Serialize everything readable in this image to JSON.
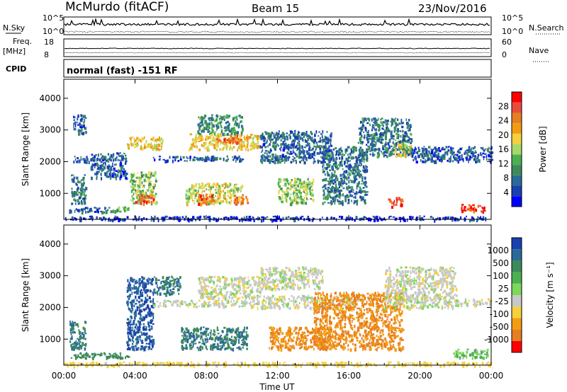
{
  "header": {
    "station": "McMurdo (fitACF)",
    "beam": "Beam 15",
    "date": "23/Nov/2016"
  },
  "summary_panels": {
    "nsky_label": "N.Sky",
    "nsky_ticks": [
      "10^5",
      "10^0"
    ],
    "nsearch_label": "N.Search",
    "nsearch_ticks": [
      "10^5",
      "10^0"
    ],
    "freq_label": "Freq.",
    "freq_unit": "[MHz]",
    "freq_ticks": [
      "18",
      "8"
    ],
    "nave_label": "Nave",
    "nave_ticks": [
      "60",
      "0"
    ],
    "cpid_label": "CPID",
    "cpid_value": "normal (fast) -151 RF"
  },
  "chart_data": [
    {
      "type": "heatmap",
      "panel": "power",
      "ylabel": "Slant Range [km]",
      "ylim": [
        180,
        4600
      ],
      "yticks": [
        "1000",
        "2000",
        "3000",
        "4000"
      ],
      "xlim": [
        0,
        24
      ],
      "colorbar": {
        "label": "Power [dB]",
        "ticks": [
          "28",
          "24",
          "20",
          "16",
          "12",
          "8",
          "4"
        ],
        "colors": [
          "#0000ff",
          "#1a3fb0",
          "#2a6a9a",
          "#3d8a5a",
          "#4caf50",
          "#a6d96a",
          "#f4d03f",
          "#f39c12",
          "#e67e22",
          "#e74c3c",
          "#ff0000"
        ]
      },
      "regions": [
        {
          "t0": 0.3,
          "t1": 2.5,
          "r0": 430,
          "r1": 600,
          "v": 6
        },
        {
          "t0": 0.4,
          "t1": 1.2,
          "r0": 700,
          "r1": 1600,
          "v": 8
        },
        {
          "t0": 0.5,
          "t1": 1.5,
          "r0": 2000,
          "r1": 2200,
          "v": 7
        },
        {
          "t0": 0.5,
          "t1": 1.2,
          "r0": 2900,
          "r1": 3500,
          "v": 6
        },
        {
          "t0": 1.5,
          "t1": 3.5,
          "r0": 1500,
          "r1": 2300,
          "v": 6
        },
        {
          "t0": 2.5,
          "t1": 3.7,
          "r0": 450,
          "r1": 600,
          "v": 12
        },
        {
          "t0": 3.5,
          "t1": 5.5,
          "r0": 2400,
          "r1": 2800,
          "v": 18
        },
        {
          "t0": 3.7,
          "t1": 5.2,
          "r0": 700,
          "r1": 1700,
          "v": 14
        },
        {
          "t0": 4.0,
          "t1": 5.0,
          "r0": 700,
          "r1": 1000,
          "v": 24
        },
        {
          "t0": 5.0,
          "t1": 10.0,
          "r0": 2050,
          "r1": 2200,
          "v": 6
        },
        {
          "t0": 6.8,
          "t1": 10.0,
          "r0": 700,
          "r1": 1350,
          "v": 16
        },
        {
          "t0": 7.5,
          "t1": 8.5,
          "r0": 700,
          "r1": 1000,
          "v": 24
        },
        {
          "t0": 9.5,
          "t1": 10.3,
          "r0": 700,
          "r1": 1000,
          "v": 22
        },
        {
          "t0": 7.0,
          "t1": 11.0,
          "r0": 2400,
          "r1": 2900,
          "v": 18
        },
        {
          "t0": 8.5,
          "t1": 10.0,
          "r0": 2600,
          "r1": 2850,
          "v": 24
        },
        {
          "t0": 7.5,
          "t1": 10.0,
          "r0": 2900,
          "r1": 3500,
          "v": 10
        },
        {
          "t0": 11.0,
          "t1": 15.0,
          "r0": 2000,
          "r1": 3000,
          "v": 7
        },
        {
          "t0": 12.0,
          "t1": 14.0,
          "r0": 700,
          "r1": 1500,
          "v": 14
        },
        {
          "t0": 14.5,
          "t1": 17.0,
          "r0": 700,
          "r1": 2500,
          "v": 8
        },
        {
          "t0": 16.5,
          "t1": 19.5,
          "r0": 2200,
          "r1": 3400,
          "v": 8
        },
        {
          "t0": 18.2,
          "t1": 19.0,
          "r0": 600,
          "r1": 900,
          "v": 26
        },
        {
          "t0": 18.5,
          "t1": 19.5,
          "r0": 2200,
          "r1": 2600,
          "v": 16
        },
        {
          "t0": 19.5,
          "t1": 24.0,
          "r0": 2000,
          "r1": 2500,
          "v": 6
        },
        {
          "t0": 22.3,
          "t1": 23.6,
          "r0": 450,
          "r1": 700,
          "v": 26
        },
        {
          "t0": 0.0,
          "t1": 24.0,
          "r0": 180,
          "r1": 300,
          "v": 4
        }
      ]
    },
    {
      "type": "heatmap",
      "panel": "velocity",
      "ylabel": "Slant Range [km]",
      "xlabel": "Time UT",
      "ylim": [
        180,
        4600
      ],
      "yticks": [
        "1000",
        "2000",
        "3000",
        "4000"
      ],
      "xlim": [
        0,
        24
      ],
      "xticks": [
        "00:00",
        "04:00",
        "08:00",
        "12:00",
        "16:00",
        "20:00",
        "00:00"
      ],
      "colorbar": {
        "label": "Velocity [m s⁻¹]",
        "ticks": [
          "1000",
          "500",
          "100",
          "25",
          "-25",
          "-100",
          "-500",
          "-1000"
        ],
        "colors": [
          "#1a3fb0",
          "#2a6a9a",
          "#3d8a5a",
          "#4caf50",
          "#7bd85a",
          "#c8c8c8",
          "#f4d03f",
          "#f39c12",
          "#e67e22",
          "#ff0000"
        ]
      },
      "regions": [
        {
          "t0": 0.3,
          "t1": 3.8,
          "r0": 430,
          "r1": 600,
          "v": 200
        },
        {
          "t0": 0.3,
          "t1": 1.2,
          "r0": 700,
          "r1": 1600,
          "v": 300
        },
        {
          "t0": 3.5,
          "t1": 5.0,
          "r0": 700,
          "r1": 3000,
          "v": 700
        },
        {
          "t0": 5.0,
          "t1": 6.5,
          "r0": 2400,
          "r1": 3000,
          "v": 300
        },
        {
          "t0": 6.5,
          "t1": 10.3,
          "r0": 700,
          "r1": 1400,
          "v": 300
        },
        {
          "t0": 5.0,
          "t1": 10.5,
          "r0": 2050,
          "r1": 2250,
          "v": 0
        },
        {
          "t0": 7.5,
          "t1": 11.0,
          "r0": 2300,
          "r1": 3000,
          "v": 0
        },
        {
          "t0": 10.5,
          "t1": 16.5,
          "r0": 2000,
          "r1": 2400,
          "v": 0
        },
        {
          "t0": 11.0,
          "t1": 14.5,
          "r0": 2600,
          "r1": 3300,
          "v": 0
        },
        {
          "t0": 11.5,
          "t1": 15.0,
          "r0": 700,
          "r1": 1400,
          "v": -300
        },
        {
          "t0": 14.0,
          "t1": 19.0,
          "r0": 700,
          "r1": 2500,
          "v": -300
        },
        {
          "t0": 18.0,
          "t1": 22.0,
          "r0": 2000,
          "r1": 3300,
          "v": 0
        },
        {
          "t0": 22.0,
          "t1": 24.0,
          "r0": 2100,
          "r1": 2300,
          "v": 0
        },
        {
          "t0": 21.8,
          "t1": 23.8,
          "r0": 430,
          "r1": 700,
          "v": 60
        },
        {
          "t0": 0.0,
          "t1": 24.0,
          "r0": 180,
          "r1": 300,
          "v": -60
        }
      ]
    }
  ]
}
